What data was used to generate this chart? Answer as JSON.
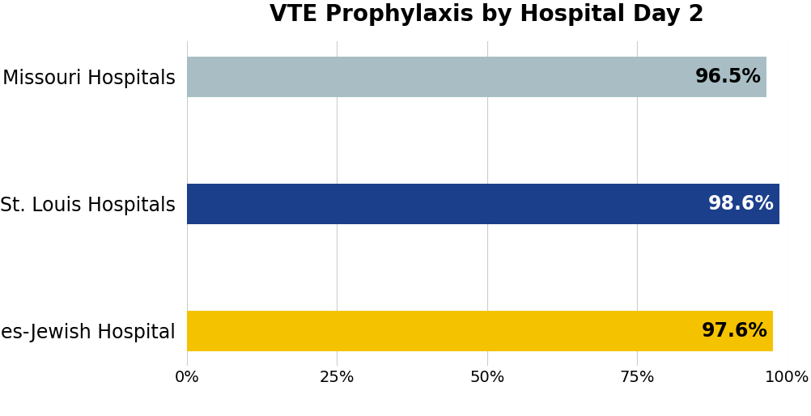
{
  "title": "VTE Prophylaxis by Hospital Day 2",
  "categories": [
    "Barnes-Jewish Hospital",
    "St. Louis Hospitals",
    "Missouri Hospitals"
  ],
  "values": [
    97.6,
    98.6,
    96.5
  ],
  "bar_colors": [
    "#F5C200",
    "#1B3F8B",
    "#A8BEC4"
  ],
  "label_colors": [
    "black",
    "white",
    "black"
  ],
  "labels": [
    "97.6%",
    "98.6%",
    "96.5%"
  ],
  "xlim": [
    0,
    100
  ],
  "xticks": [
    0,
    25,
    50,
    75,
    100
  ],
  "xticklabels": [
    "0%",
    "25%",
    "50%",
    "75%",
    "100%"
  ],
  "title_fontsize": 20,
  "label_fontsize": 17,
  "tick_fontsize": 14,
  "category_fontsize": 17,
  "background_color": "#ffffff",
  "bar_height": 0.32
}
